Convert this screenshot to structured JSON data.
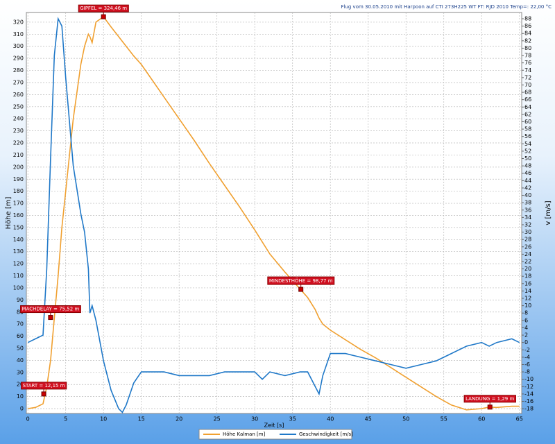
{
  "chart_data": {
    "type": "line",
    "title": "Flug vom 30.05.2010 mit Harpoon auf CTI 273H225 WT FT: RJD 2010 Temp=: 22,00 °C",
    "x_label": "Zeit [s]",
    "y_label": "Höhe [m]",
    "y2_label": "v [m/s]",
    "x": [
      0,
      1,
      2,
      2.5,
      3,
      3.5,
      4,
      4.5,
      5,
      6,
      7,
      7.5,
      8,
      8.2,
      8.5,
      9,
      10,
      11,
      12,
      12.5,
      13,
      14,
      15,
      16,
      18,
      20,
      22,
      24,
      26,
      28,
      30,
      31,
      32,
      34,
      36,
      37,
      38,
      38.5,
      39,
      40,
      42,
      44,
      46,
      48,
      50,
      52,
      54,
      56,
      58,
      60,
      61,
      62,
      64,
      65
    ],
    "series": [
      {
        "name": "Höhe Kalman [m]",
        "color": "#f0a030",
        "values": [
          0,
          1,
          4,
          18,
          40,
          75,
          110,
          150,
          180,
          240,
          285,
          300,
          310,
          308,
          303,
          320,
          324.5,
          316,
          308,
          304,
          300,
          292,
          285,
          276,
          258,
          240,
          222,
          203,
          185,
          167,
          148,
          138,
          128,
          113,
          99,
          92,
          82,
          75,
          70,
          65,
          57,
          49,
          42,
          34,
          26,
          18,
          10,
          3,
          -1,
          0,
          1.3,
          1,
          2,
          2
        ]
      },
      {
        "name": "Geschwindigkeit [m/s]",
        "color": "#1f78c8",
        "axis": "y2",
        "values": [
          0,
          1,
          2,
          20,
          50,
          78,
          88,
          86,
          72,
          48,
          35,
          30,
          20,
          8,
          10,
          6,
          -5,
          -13,
          -18,
          -19,
          -17,
          -11,
          -8,
          -8,
          -8,
          -9,
          -9,
          -9,
          -8,
          -8,
          -8,
          -10,
          -8,
          -9,
          -8,
          -8,
          -12,
          -14,
          -9,
          -3,
          -3,
          -4,
          -5,
          -6,
          -7,
          -6,
          -5,
          -3,
          -1,
          0,
          -1,
          0,
          1,
          0
        ]
      }
    ],
    "annotations": [
      {
        "label": "START = 12,15 m",
        "x": 2.1,
        "y": 12.15
      },
      {
        "label": "MACHDELAY = 75,52 m",
        "x": 3.0,
        "y": 75.52
      },
      {
        "label": "GIPFEL = 324,46 m",
        "x": 10,
        "y": 324.46
      },
      {
        "label": "MINDESTHÖHE = 98,77 m",
        "x": 36.1,
        "y": 98.77
      },
      {
        "label": "LANDUNG = 1,29 m",
        "x": 61.1,
        "y": 1.29
      }
    ],
    "xlim": [
      -0.2,
      65.3
    ],
    "xticks": [
      0,
      5,
      10,
      15,
      20,
      25,
      30,
      35,
      40,
      45,
      50,
      55,
      60,
      65
    ],
    "ylim": [
      -4,
      328
    ],
    "yticks": [
      0,
      10,
      20,
      30,
      40,
      50,
      60,
      70,
      80,
      90,
      100,
      110,
      120,
      130,
      140,
      150,
      160,
      170,
      180,
      190,
      200,
      210,
      220,
      230,
      240,
      250,
      260,
      270,
      280,
      290,
      300,
      310,
      320
    ],
    "y2lim": [
      -19.3,
      89.7
    ],
    "y2ticks": [
      -18,
      -16,
      -14,
      -12,
      -10,
      -8,
      -6,
      -4,
      -2,
      0,
      2,
      4,
      6,
      8,
      10,
      12,
      14,
      16,
      18,
      20,
      22,
      24,
      26,
      28,
      30,
      32,
      34,
      36,
      38,
      40,
      42,
      44,
      46,
      48,
      50,
      52,
      54,
      56,
      58,
      60,
      62,
      64,
      66,
      68,
      70,
      72,
      74,
      76,
      78,
      80,
      82,
      84,
      86,
      88
    ],
    "grid": true
  }
}
